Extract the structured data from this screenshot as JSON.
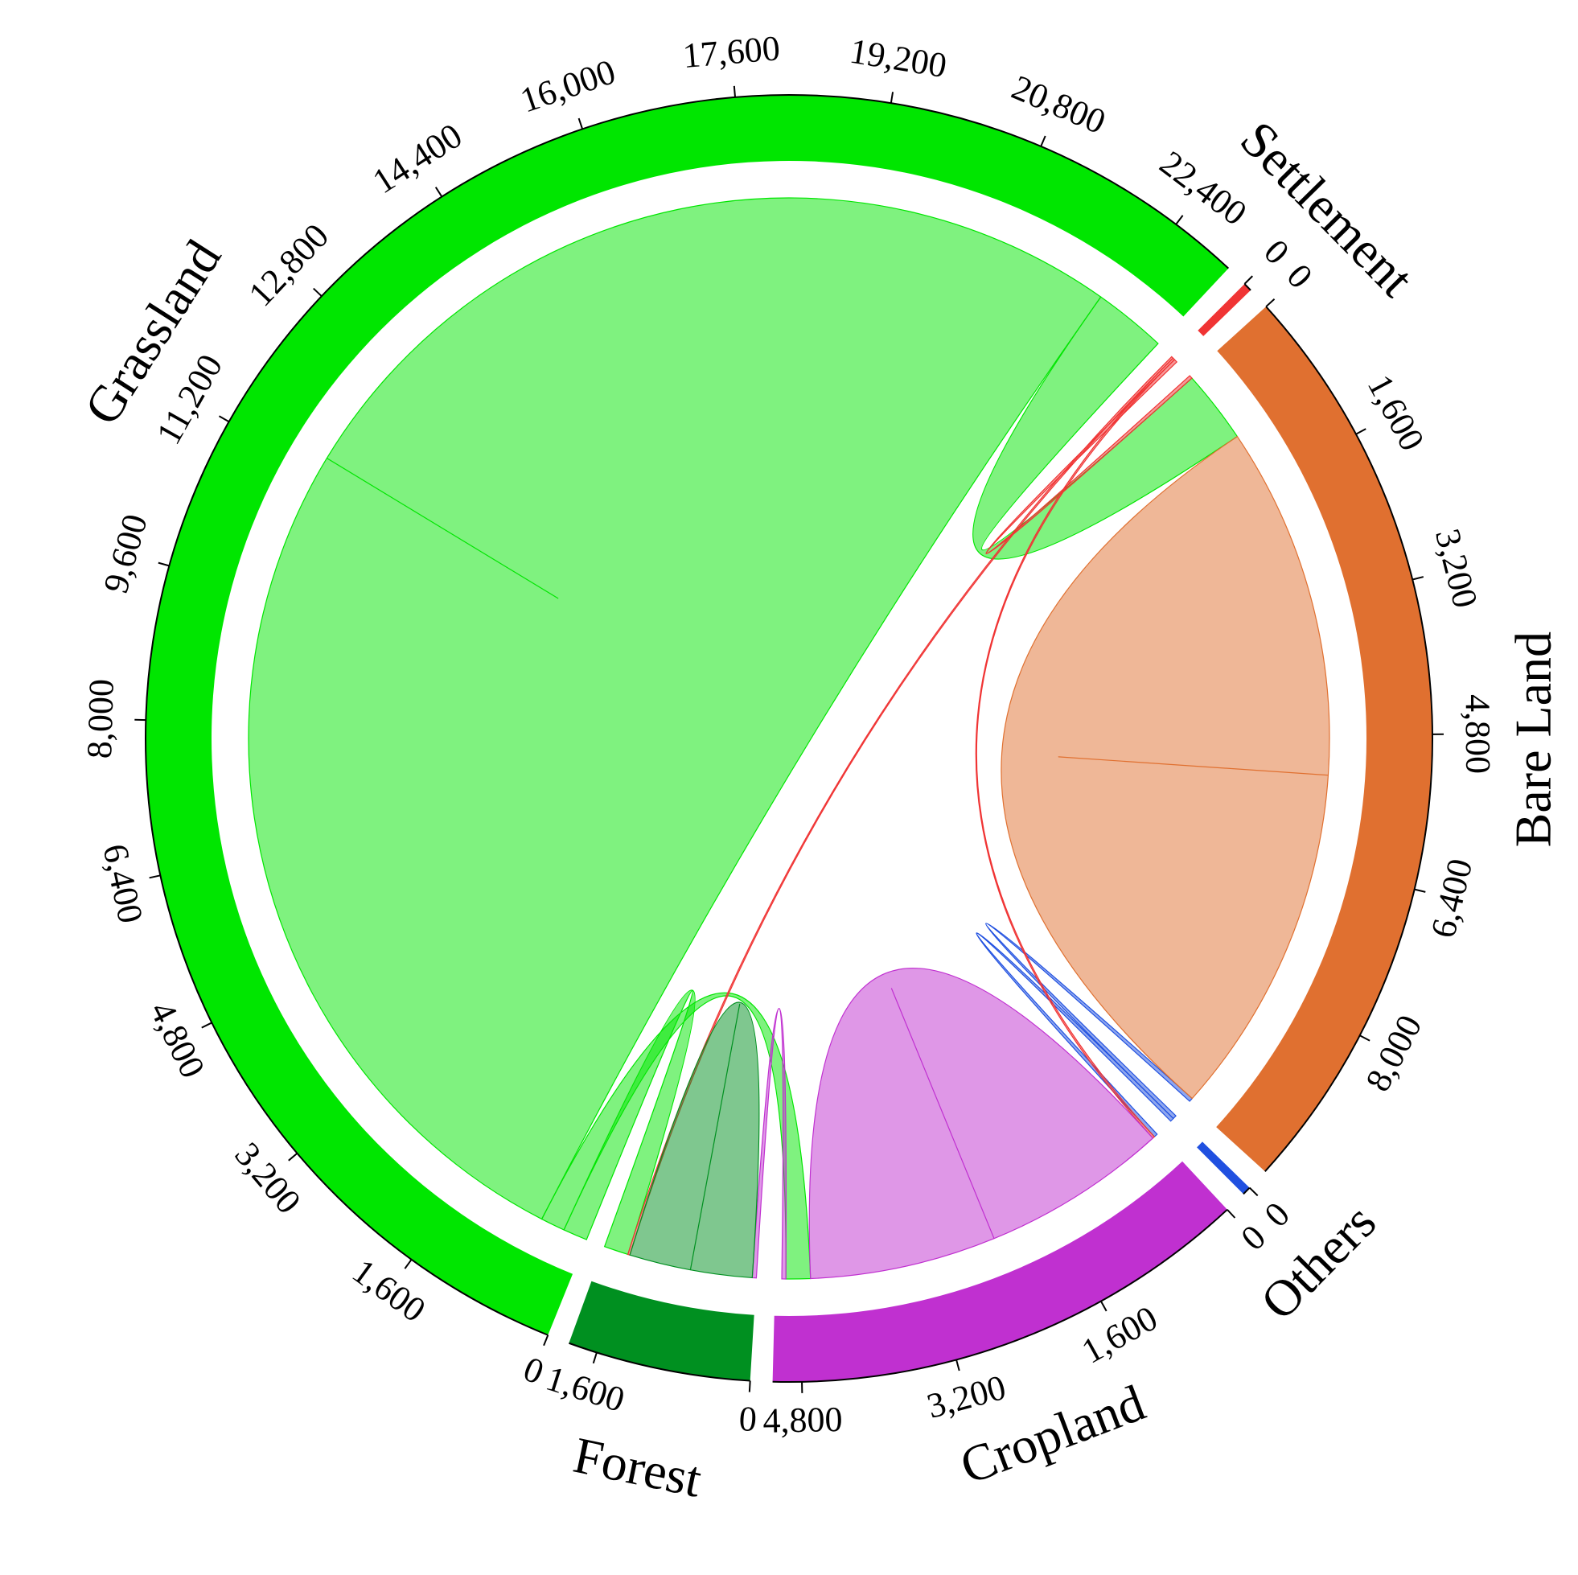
{
  "chart_data": {
    "type": "chord",
    "sectors": [
      {
        "name": "Grassland",
        "value": 23100,
        "color": "#00e600",
        "ticks": [
          0,
          {
            "value": 1600,
            "label": "1,600"
          },
          {
            "value": 3200,
            "label": "3,200"
          },
          {
            "value": 4800,
            "label": "4,800"
          },
          {
            "value": 6400,
            "label": "6,400"
          },
          {
            "value": 8000,
            "label": "8,000"
          },
          {
            "value": 9600,
            "label": "9,600"
          },
          {
            "value": 11200,
            "label": "11,200"
          },
          {
            "value": 12800,
            "label": "12,800"
          },
          {
            "value": 14400,
            "label": "14,400"
          },
          {
            "value": 16000,
            "label": "16,000"
          },
          {
            "value": 17600,
            "label": "17,600"
          },
          {
            "value": 19200,
            "label": "19,200"
          },
          {
            "value": 20800,
            "label": "20,800"
          },
          {
            "value": 22400,
            "label": "22,400"
          }
        ]
      },
      {
        "name": "Settlement",
        "value": 90,
        "color": "#f03434",
        "ticks": [
          0
        ]
      },
      {
        "name": "Bare Land",
        "value": 9700,
        "color": "#e07030",
        "ticks": [
          0,
          {
            "value": 1600,
            "label": "1,600"
          },
          {
            "value": 3200,
            "label": "3,200"
          },
          {
            "value": 4800,
            "label": "4,800"
          },
          {
            "value": 6400,
            "label": "6,400"
          },
          {
            "value": 8000,
            "label": "8,000"
          }
        ]
      },
      {
        "name": "Others",
        "value": 90,
        "color": "#2050e0",
        "ticks": [
          0
        ]
      },
      {
        "name": "Cropland",
        "value": 5100,
        "color": "#c030d0",
        "ticks": [
          0,
          {
            "value": 1600,
            "label": "1,600"
          },
          {
            "value": 3200,
            "label": "3,200"
          },
          {
            "value": 4800,
            "label": "4,800"
          }
        ]
      },
      {
        "name": "Forest",
        "value": 1900,
        "color": "#009020",
        "ticks": [
          0,
          {
            "value": 1600,
            "label": "1,600"
          }
        ]
      }
    ],
    "links": [
      {
        "source": "Grassland",
        "target": "Grassland",
        "value": 10800
      },
      {
        "source": "Grassland",
        "target": "Forest",
        "value": 300
      },
      {
        "source": "Grassland",
        "target": "Cropland",
        "value": 300
      },
      {
        "source": "Grassland",
        "target": "Bare Land",
        "value": 900
      },
      {
        "source": "Settlement",
        "target": "Bare Land",
        "value": 40
      },
      {
        "source": "Others",
        "target": "Bare Land",
        "value": 45
      },
      {
        "source": "Bare Land",
        "target": "Bare Land",
        "value": 4350
      },
      {
        "source": "Others",
        "target": "Cropland",
        "value": 45
      },
      {
        "source": "Settlement",
        "target": "Cropland",
        "value": 25
      },
      {
        "source": "Cropland",
        "target": "Cropland",
        "value": 2300
      },
      {
        "source": "Cropland",
        "target": "Forest",
        "value": 50
      },
      {
        "source": "Settlement",
        "target": "Forest",
        "value": 25
      },
      {
        "source": "Forest",
        "target": "Forest",
        "value": 760
      }
    ]
  }
}
